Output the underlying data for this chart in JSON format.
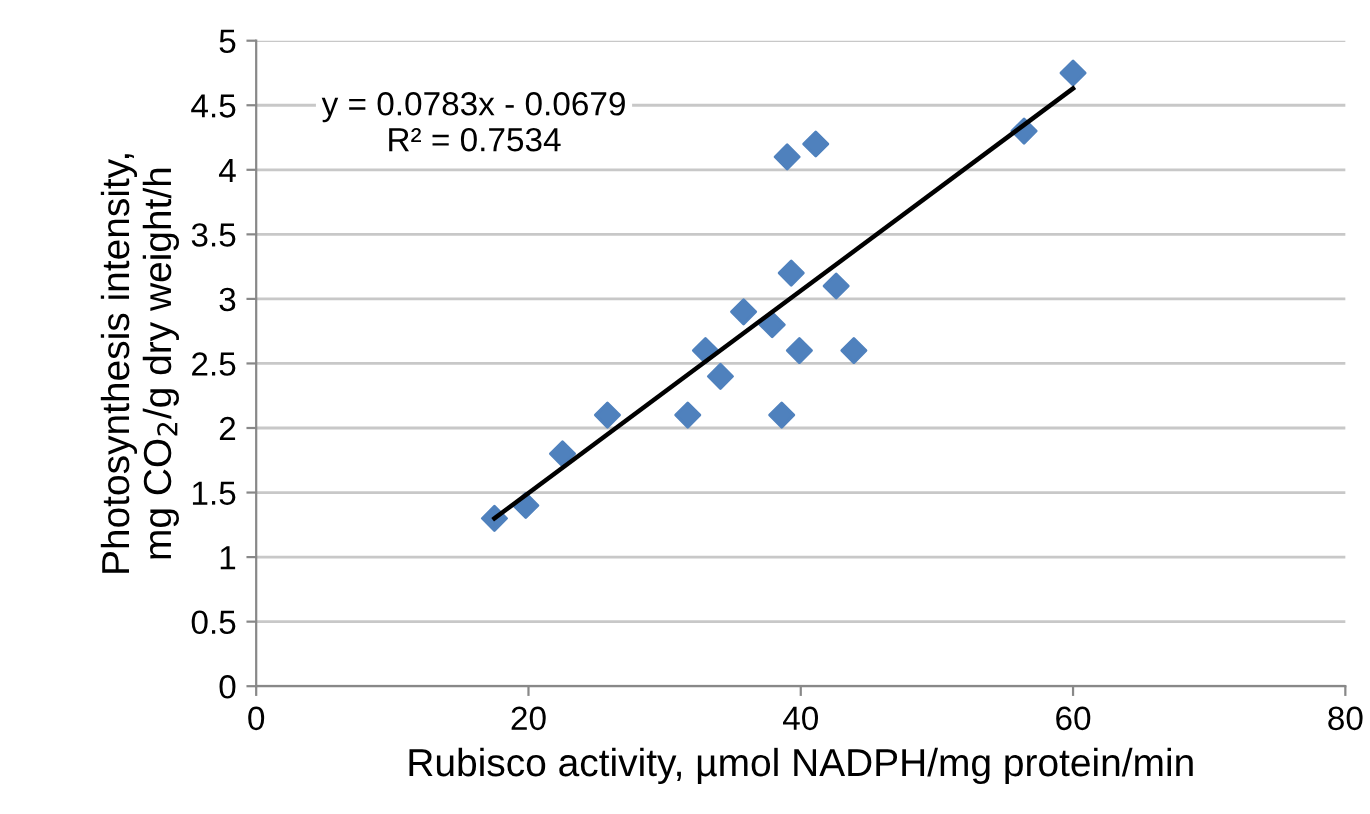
{
  "chart_data": {
    "type": "scatter",
    "xlabel": "Rubisco activity, µmol NADPH/mg protein/min",
    "ylabel": "Photosynthesis intensity,\nmg CO$_{2}$/g dry weight/h",
    "xlim": [
      0,
      80
    ],
    "xticks": [
      0,
      20,
      40,
      60,
      80
    ],
    "ylim": [
      0,
      5
    ],
    "yticks": [
      0,
      0.5,
      1,
      1.5,
      2,
      2.5,
      3,
      3.5,
      4,
      4.5,
      5
    ],
    "grid": "y",
    "legend": false,
    "annotations": [
      "y = 0.0783x - 0.0679\nR² = 0.7534"
    ],
    "series": [
      {
        "marker": "diamond",
        "color": "#4f81bd",
        "x": [
          17.5,
          19.8,
          22.5,
          25.8,
          31.7,
          33.0,
          34.1,
          35.8,
          37.9,
          38.6,
          39.0,
          39.3,
          39.9,
          41.1,
          42.6,
          43.9,
          56.4,
          60.0
        ],
        "values": [
          1.3,
          1.4,
          1.8,
          2.1,
          2.1,
          2.6,
          2.4,
          2.9,
          2.8,
          2.1,
          4.1,
          3.2,
          2.6,
          4.2,
          3.1,
          2.6,
          4.3,
          4.75
        ]
      },
      {
        "type": "line",
        "marker": "none",
        "color": "#000000",
        "x": [
          17.5,
          60.0
        ],
        "values": [
          1.3,
          4.63
        ]
      }
    ]
  }
}
